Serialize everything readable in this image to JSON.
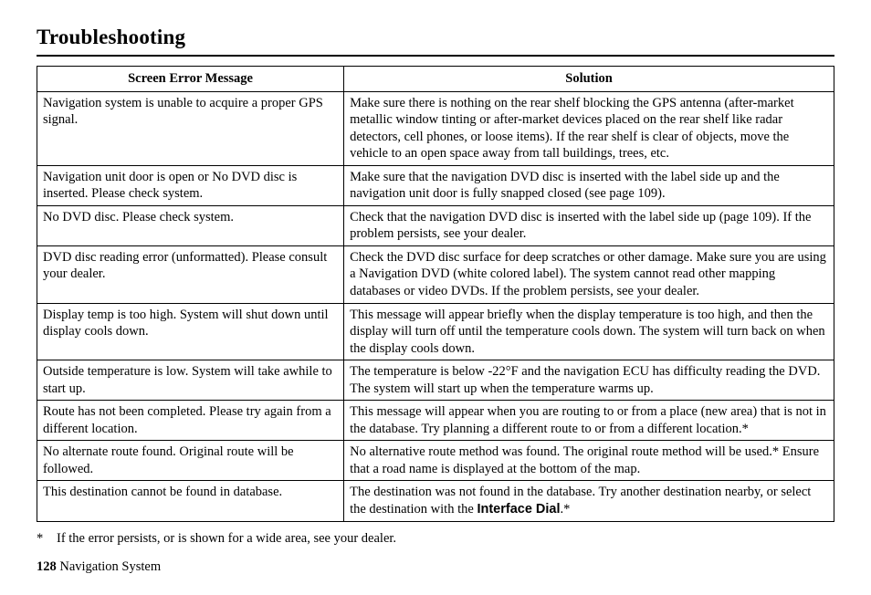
{
  "title": "Troubleshooting",
  "table": {
    "columns": [
      "Screen Error Message",
      "Solution"
    ],
    "col_widths_pct": [
      38.5,
      61.5
    ],
    "header_align": "center",
    "cell_align": "left",
    "border_color": "#000000",
    "font_family": "Times New Roman",
    "font_size_pt": 11,
    "rows": [
      {
        "message": "Navigation system is unable to acquire a proper GPS signal.",
        "solution": "Make sure there is nothing on the rear shelf blocking the GPS antenna (after-market metallic window tinting or after-market devices placed on the rear shelf like radar detectors, cell phones, or loose items). If the rear shelf is clear of objects, move the vehicle to an open space away from tall buildings, trees, etc."
      },
      {
        "message": "Navigation unit door is open or No DVD disc is inserted. Please check system.",
        "solution": "Make sure that the navigation DVD disc is inserted with the label side up and the navigation unit door is fully snapped closed (see page 109)."
      },
      {
        "message": "No DVD disc. Please check system.",
        "solution": "Check that the navigation DVD disc is inserted with the label side up (page 109). If the problem persists, see your dealer."
      },
      {
        "message": "DVD disc reading error (unformatted). Please consult your dealer.",
        "solution": "Check the DVD disc surface for deep scratches or other damage. Make sure you are using a Navigation DVD (white colored label). The system cannot read other mapping databases or video DVDs. If the problem persists, see your dealer."
      },
      {
        "message": "Display temp is too high. System will shut down until display cools down.",
        "solution": "This message will appear briefly when the display temperature is too high, and then the display will turn off until the temperature cools down. The system will turn back on when the display cools down."
      },
      {
        "message": "Outside temperature is low. System will take awhile to start up.",
        "solution": "The temperature is below -22°F and the navigation ECU has difficulty reading the DVD. The system will start up when the temperature warms up."
      },
      {
        "message": "Route has not been completed. Please try again from a different location.",
        "solution": "This message will appear when you are routing to or from a place (new area) that is not in the database. Try planning a different route to or from a different location.*"
      },
      {
        "message": "No alternate route found. Original route will be followed.",
        "solution": "No alternative route method was found. The original route method will be used.* Ensure that a road name is displayed at the bottom of the map."
      },
      {
        "message": "This destination cannot be found in database.",
        "solution_prefix": "The destination was not found in the database. Try another destination nearby, or select the destination with the ",
        "solution_bold": "Interface Dial",
        "solution_suffix": ".*"
      }
    ]
  },
  "footnote": {
    "marker": "*",
    "text": "If the error persists, or is shown for a wide area, see your dealer."
  },
  "footer": {
    "page_number": "128",
    "section": "Navigation System"
  },
  "colors": {
    "text": "#000000",
    "background": "#ffffff",
    "border": "#000000"
  }
}
